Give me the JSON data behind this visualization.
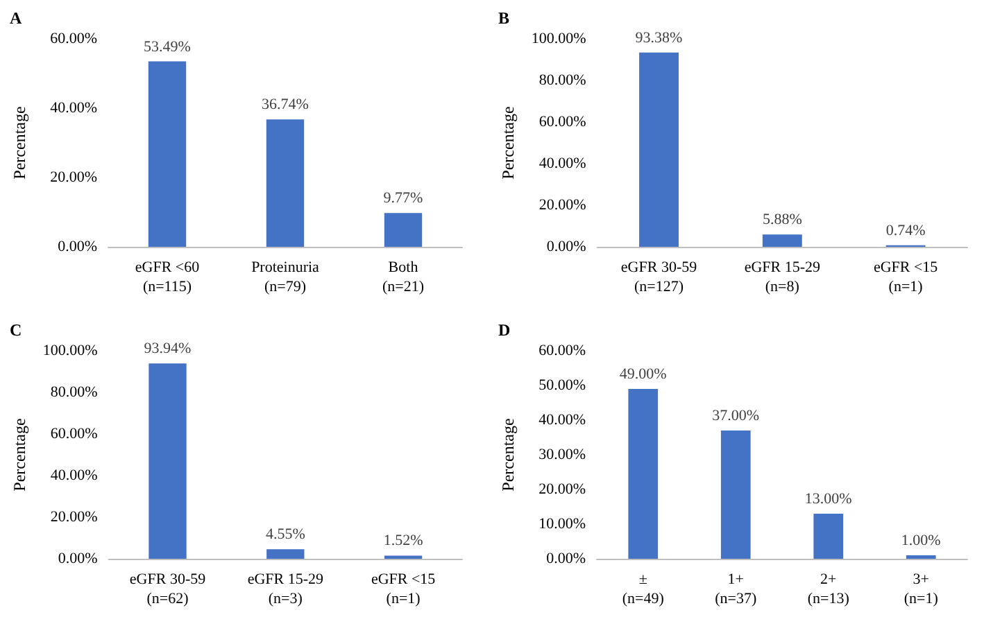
{
  "chart_data": [
    {
      "type": "bar",
      "title": "A",
      "ylabel": "Percentage",
      "categories": [
        "eGFR <60\n(n=115)",
        "Proteinuria\n(n=79)",
        "Both\n(n=21)"
      ],
      "values": [
        53.49,
        36.74,
        9.77
      ],
      "value_labels": [
        "53.49%",
        "36.74%",
        "9.77%"
      ],
      "color": "#4472c4",
      "ylim": [
        0,
        60
      ],
      "yticks": [
        {
          "value": 0,
          "label": "0.00%"
        },
        {
          "value": 20,
          "label": "20.00%"
        },
        {
          "value": 40,
          "label": "40.00%"
        },
        {
          "value": 60,
          "label": "60.00%"
        }
      ],
      "grid": false
    },
    {
      "type": "bar",
      "title": "B",
      "ylabel": "Percentage",
      "categories": [
        "eGFR 30-59\n(n=127)",
        "eGFR 15-29\n(n=8)",
        "eGFR <15\n(n=1)"
      ],
      "values": [
        93.38,
        5.88,
        0.74
      ],
      "value_labels": [
        "93.38%",
        "5.88%",
        "0.74%"
      ],
      "color": "#4472c4",
      "ylim": [
        0,
        100
      ],
      "yticks": [
        {
          "value": 0,
          "label": "0.00%"
        },
        {
          "value": 20,
          "label": "20.00%"
        },
        {
          "value": 40,
          "label": "40.00%"
        },
        {
          "value": 60,
          "label": "60.00%"
        },
        {
          "value": 80,
          "label": "80.00%"
        },
        {
          "value": 100,
          "label": "100.00%"
        }
      ],
      "grid": false
    },
    {
      "type": "bar",
      "title": "C",
      "ylabel": "Percentage",
      "categories": [
        "eGFR 30-59\n(n=62)",
        "eGFR 15-29\n(n=3)",
        "eGFR <15\n(n=1)"
      ],
      "values": [
        93.94,
        4.55,
        1.52
      ],
      "value_labels": [
        "93.94%",
        "4.55%",
        "1.52%"
      ],
      "color": "#4472c4",
      "ylim": [
        0,
        100
      ],
      "yticks": [
        {
          "value": 0,
          "label": "0.00%"
        },
        {
          "value": 20,
          "label": "20.00%"
        },
        {
          "value": 40,
          "label": "40.00%"
        },
        {
          "value": 60,
          "label": "60.00%"
        },
        {
          "value": 80,
          "label": "80.00%"
        },
        {
          "value": 100,
          "label": "100.00%"
        }
      ],
      "grid": false
    },
    {
      "type": "bar",
      "title": "D",
      "ylabel": "Percentage",
      "categories": [
        "±\n(n=49)",
        "1+\n(n=37)",
        "2+\n(n=13)",
        "3+\n(n=1)"
      ],
      "values": [
        49,
        37,
        13,
        1
      ],
      "value_labels": [
        "49.00%",
        "37.00%",
        "13.00%",
        "1.00%"
      ],
      "color": "#4472c4",
      "ylim": [
        0,
        60
      ],
      "yticks": [
        {
          "value": 0,
          "label": "0.00%"
        },
        {
          "value": 10,
          "label": "10.00%"
        },
        {
          "value": 20,
          "label": "20.00%"
        },
        {
          "value": 30,
          "label": "30.00%"
        },
        {
          "value": 40,
          "label": "40.00%"
        },
        {
          "value": 50,
          "label": "50.00%"
        },
        {
          "value": 60,
          "label": "60.00%"
        }
      ],
      "grid": false
    }
  ]
}
